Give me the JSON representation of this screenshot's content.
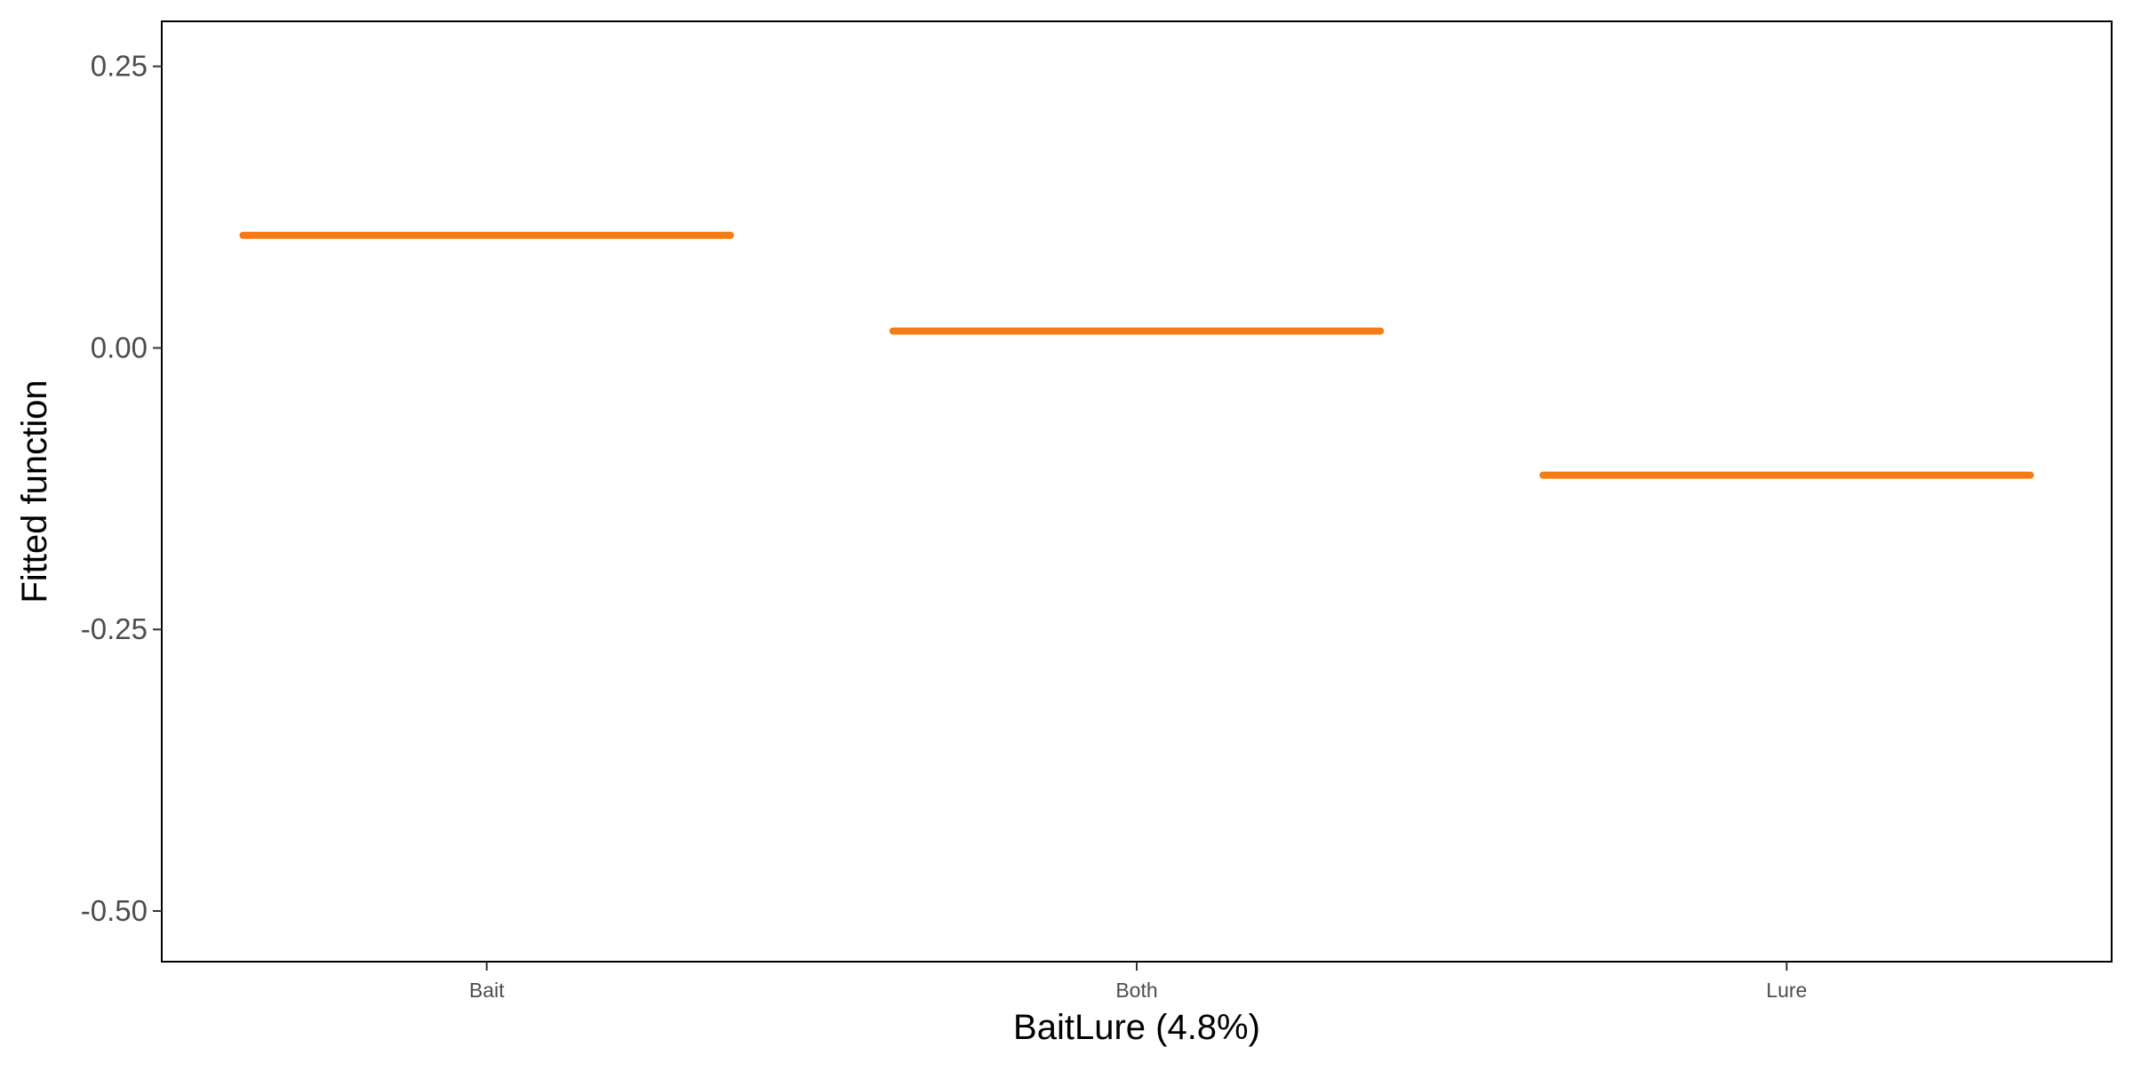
{
  "chart_data": {
    "type": "line",
    "title": "",
    "xlabel": "BaitLure  (4.8%)",
    "ylabel": "Fitted function",
    "categories": [
      "Bait",
      "Both",
      "Lure"
    ],
    "series": [
      {
        "values": [
          0.1,
          0.015,
          -0.113
        ]
      }
    ],
    "ylim": [
      -0.545,
      0.29
    ],
    "yticks": [
      0.25,
      0.0,
      -0.25,
      -0.5
    ],
    "ytick_labels": [
      "0.25",
      "0.00",
      "-0.25",
      "-0.50"
    ],
    "grid": false,
    "legend": "none",
    "colors": {
      "series": "#f57c14",
      "axis": "#000000",
      "tick_label": "#4d4d4d"
    }
  }
}
